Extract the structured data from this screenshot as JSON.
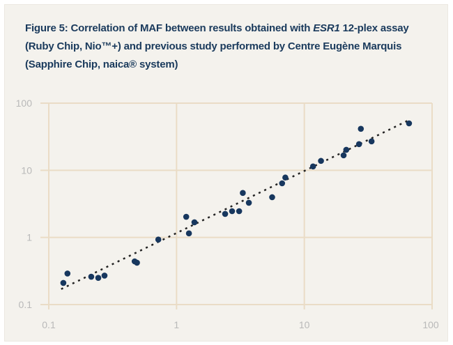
{
  "title": {
    "part1": "Figure 5: Correlation of MAF between results obtained with ",
    "italic": "ESR1",
    "part2": " 12-plex assay (Ruby Chip, Nio™+) and previous study performed by Centre Eugène Marquis (Sapphire Chip, naica® system)"
  },
  "colors": {
    "point": "#17375e",
    "grid": "#eadcc6",
    "trend": "#222222",
    "background": "#f4f2ed"
  },
  "chart_data": {
    "type": "scatter",
    "title": "Figure 5: Correlation of MAF between results obtained with ESR1 12-plex assay (Ruby Chip, Nio™+) and previous study performed by Centre Eugène Marquis (Sapphire Chip, naica® system)",
    "xlabel": "",
    "ylabel": "",
    "xscale": "log",
    "yscale": "log",
    "xlim": [
      0.1,
      100
    ],
    "ylim": [
      0.1,
      100
    ],
    "grid": true,
    "x_ticks": [
      "0.1",
      "1",
      "10",
      "100"
    ],
    "y_ticks": [
      "100",
      "10",
      "1",
      "0.1"
    ],
    "tick_values": [
      0.1,
      1,
      10,
      100
    ],
    "points": [
      [
        0.13,
        0.21
      ],
      [
        0.14,
        0.29
      ],
      [
        0.215,
        0.26
      ],
      [
        0.244,
        0.25
      ],
      [
        0.273,
        0.27
      ],
      [
        0.47,
        0.44
      ],
      [
        0.49,
        0.42
      ],
      [
        0.72,
        0.93
      ],
      [
        1.19,
        2.03
      ],
      [
        1.25,
        1.15
      ],
      [
        1.38,
        1.68
      ],
      [
        2.4,
        2.24
      ],
      [
        2.72,
        2.46
      ],
      [
        3.09,
        2.46
      ],
      [
        3.3,
        4.6
      ],
      [
        3.68,
        3.28
      ],
      [
        5.6,
        3.97
      ],
      [
        6.7,
        6.4
      ],
      [
        7.1,
        7.8
      ],
      [
        11.7,
        11.4
      ],
      [
        13.5,
        13.8
      ],
      [
        20.3,
        16.7
      ],
      [
        21.3,
        20.2
      ],
      [
        26.8,
        24.5
      ],
      [
        27.7,
        41.5
      ],
      [
        33.6,
        27
      ],
      [
        66,
        50
      ]
    ],
    "trendline": {
      "style": "dotted",
      "from": [
        0.125,
        0.17
      ],
      "to": [
        66,
        56
      ]
    }
  }
}
